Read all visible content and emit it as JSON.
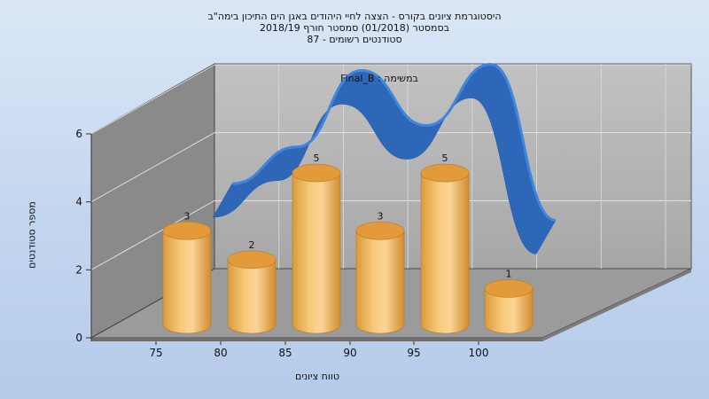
{
  "chart_data": {
    "type": "bar",
    "title_lines": [
      "היסטוגרמת ציונים בקורס - הצצה לחיי היהודים באגן הים התיכון בימה\"ב",
      "בסמסטר  (01/2018)  סמסטר חורף 2018/19",
      "סטודנטים רשומים - 87"
    ],
    "annotation": "Final_B : במשימה",
    "xlabel": "טווח ציונים",
    "ylabel": "מספר סטודנטים",
    "categories": [
      "75",
      "80",
      "85",
      "90",
      "95",
      "100"
    ],
    "values": [
      3,
      2,
      5,
      3,
      5,
      1
    ],
    "y_ticks": [
      "0",
      "2",
      "4",
      "6"
    ],
    "ylim": [
      0,
      6
    ],
    "curve": {
      "description_free": true,
      "values": [
        2.2,
        3.4,
        5.9,
        4.1,
        6.1,
        1.0
      ]
    },
    "colors": {
      "bar": "#f2b657",
      "bar_dark": "#c98a2a",
      "bar_top": "#e29a3a",
      "curve": "#2f67b8",
      "curve_light": "#3f86dd",
      "back_wall": "#b3b3b3",
      "left_wall": "#8a8a8a",
      "floor": "#9b9b9b"
    },
    "grid": true
  }
}
